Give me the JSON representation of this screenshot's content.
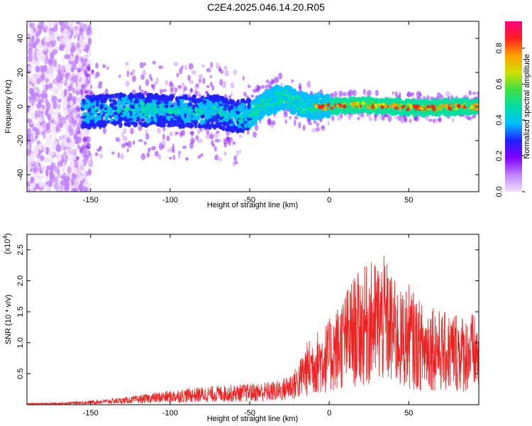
{
  "title": "C2E4.2025.046.14.20.R05",
  "chart_data": [
    {
      "type": "heatmap",
      "xlabel": "Height of straight line (km)",
      "ylabel": "Frequency (Hz)",
      "xlim": [
        -190,
        94
      ],
      "ylim": [
        -50,
        50
      ],
      "xticks": [
        -150,
        -100,
        -50,
        0,
        50
      ],
      "yticks": [
        -40,
        -20,
        0,
        20,
        40
      ],
      "grid": false,
      "colorbar": {
        "label": "Normalized spectral amplitude",
        "range": [
          0.0,
          0.95
        ],
        "ticks": [
          "0.0",
          "0.2",
          "0.4",
          "0.6",
          "0.8"
        ],
        "colors": [
          "#f0e0ff",
          "#c080ff",
          "#8000ff",
          "#2020ff",
          "#00c0ff",
          "#00e0a0",
          "#40e040",
          "#d0e000",
          "#ffa000",
          "#ff2020",
          "#ff0080"
        ]
      },
      "ridge": {
        "description_values": "center frequency (Hz) vs height (km)",
        "x": [
          -150,
          -130,
          -110,
          -90,
          -70,
          -60,
          -50,
          -40,
          -30,
          -20,
          -10,
          0,
          20,
          40,
          60,
          80,
          94
        ],
        "y": [
          -3,
          -2,
          -2,
          -3,
          -3,
          -6,
          -5,
          1,
          6,
          2,
          0,
          0,
          1,
          0,
          -1,
          0,
          0
        ]
      }
    },
    {
      "type": "line",
      "xlabel": "Height of straight line (km)",
      "ylabel": "SNR (10 * v/v)",
      "yscale_label": "(x10",
      "yscale_exp": "4",
      "xlim": [
        -190,
        94
      ],
      "ylim": [
        0,
        2.75
      ],
      "xticks": [
        -150,
        -100,
        -50,
        0,
        50
      ],
      "yticks": [
        0.5,
        1.0,
        1.5,
        2.0,
        2.5
      ],
      "ytick_labels": [
        "0.5",
        "1.0",
        "1.5",
        "2.0",
        "2.5"
      ],
      "color": "#ee2222",
      "series": [
        {
          "x": [
            -190,
            -170,
            -150,
            -140,
            -130,
            -120,
            -110,
            -100,
            -90,
            -80,
            -70,
            -60,
            -50,
            -40,
            -30,
            -20,
            -15,
            -10,
            -5,
            0,
            5,
            10,
            15,
            20,
            25,
            30,
            35,
            40,
            45,
            50,
            55,
            60,
            65,
            70,
            75,
            80,
            85,
            90,
            94
          ],
          "y": [
            0.02,
            0.03,
            0.06,
            0.08,
            0.1,
            0.13,
            0.17,
            0.2,
            0.23,
            0.25,
            0.27,
            0.28,
            0.3,
            0.32,
            0.35,
            0.55,
            0.85,
            1.0,
            1.1,
            1.2,
            1.4,
            1.6,
            1.8,
            1.9,
            2.0,
            2.05,
            2.1,
            1.8,
            1.6,
            1.7,
            1.5,
            1.4,
            1.5,
            1.3,
            1.3,
            1.35,
            1.25,
            1.3,
            1.2
          ]
        }
      ]
    }
  ]
}
